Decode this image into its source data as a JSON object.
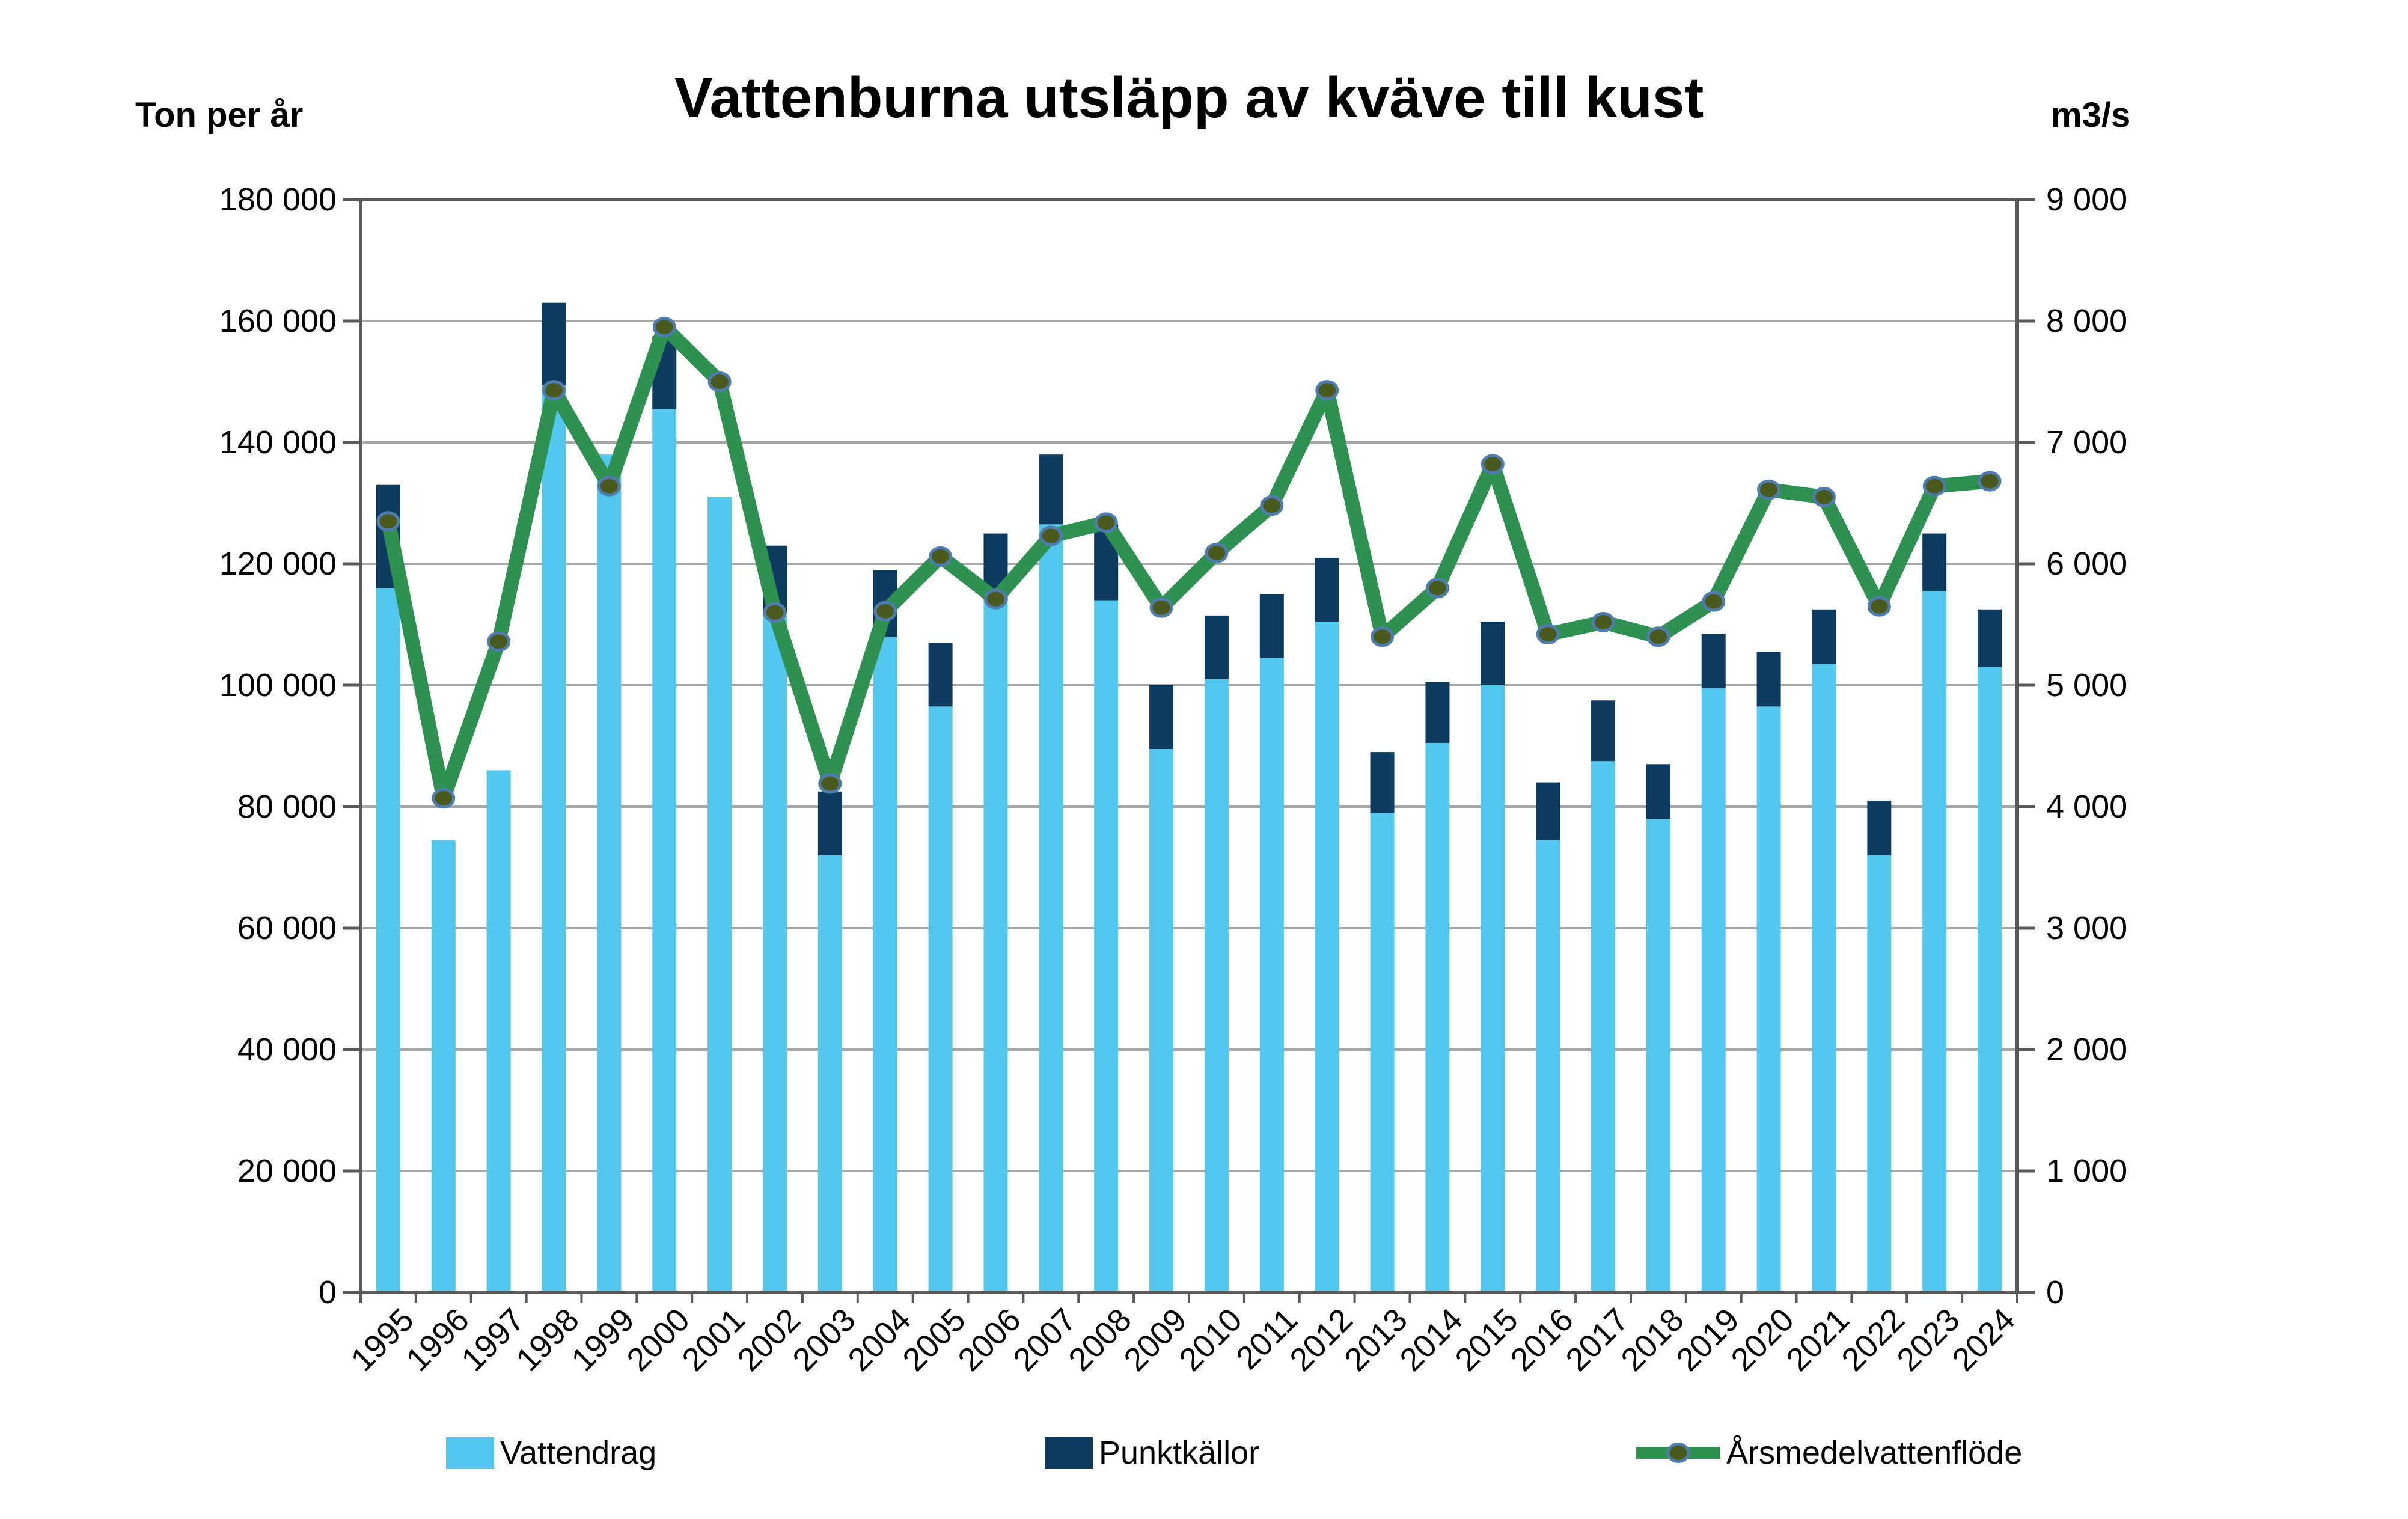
{
  "title": "Vattenburna utsläpp av kväve till kust",
  "axis": {
    "left_unit": "Ton per år",
    "right_unit": "m3/s",
    "left_ticks": [
      "180 000",
      "160 000",
      "140 000",
      "120 000",
      "100 000",
      "80 000",
      "60 000",
      "40 000",
      "20 000",
      "0"
    ],
    "right_ticks": [
      "9 000",
      "8 000",
      "7 000",
      "6 000",
      "5 000",
      "4 000",
      "3 000",
      "2 000",
      "1 000",
      "0"
    ]
  },
  "style": {
    "bar_light_blue": "#54C7EF",
    "bar_navy": "#0E3C61",
    "line_green": "#2E9051",
    "marker_fill": "#4A591E",
    "marker_ring": "#4E7CAE",
    "grid_color": "#A6A6A6",
    "axis_color": "#595959",
    "text_color": "#000000"
  },
  "chart_data": {
    "type": "bar",
    "subtype": "stacked-bars-with-line",
    "title": "Vattenburna utsläpp av kväve till kust",
    "xlabel": "",
    "ylabel_left": "Ton per år",
    "ylabel_right": "m3/s",
    "left_ylim": [
      0,
      180000
    ],
    "right_ylim": [
      0,
      9000
    ],
    "grid": true,
    "legend_position": "bottom",
    "years": [
      1995,
      1996,
      1997,
      1998,
      1999,
      2000,
      2001,
      2002,
      2003,
      2004,
      2005,
      2006,
      2007,
      2008,
      2009,
      2010,
      2011,
      2012,
      2013,
      2014,
      2015,
      2016,
      2017,
      2018,
      2019,
      2020,
      2021,
      2022,
      2023,
      2024
    ],
    "series": [
      {
        "name": "Vattendrag",
        "type": "bar",
        "axis": "left",
        "color": "#54C7EF",
        "values": [
          116000,
          74500,
          86000,
          149500,
          138000,
          145500,
          131000,
          112000,
          72000,
          108000,
          96500,
          114000,
          126500,
          114000,
          89500,
          101000,
          104500,
          110500,
          79000,
          90500,
          100000,
          74500,
          87500,
          78000,
          99500,
          96500,
          103500,
          72000,
          115500,
          103000
        ]
      },
      {
        "name": "Punktkällor",
        "type": "bar",
        "axis": "left",
        "color": "#0E3C61",
        "values": [
          17000,
          0,
          0,
          13500,
          0,
          12000,
          0,
          11000,
          10500,
          11000,
          10500,
          11000,
          11500,
          12500,
          10500,
          10500,
          10500,
          10500,
          10000,
          10000,
          10500,
          9500,
          10000,
          9000,
          9000,
          9000,
          9000,
          9000,
          9500,
          9500
        ]
      },
      {
        "name": "Årsmedelvattenflöde",
        "type": "line",
        "axis": "right",
        "color": "#2E9051",
        "values": [
          6350,
          4070,
          5360,
          7430,
          6640,
          7950,
          7500,
          5600,
          4190,
          5610,
          6060,
          5710,
          6230,
          6340,
          5640,
          6090,
          6480,
          7430,
          5400,
          5800,
          6820,
          5420,
          5520,
          5400,
          5690,
          6610,
          6550,
          5650,
          6640,
          6680
        ]
      }
    ]
  }
}
